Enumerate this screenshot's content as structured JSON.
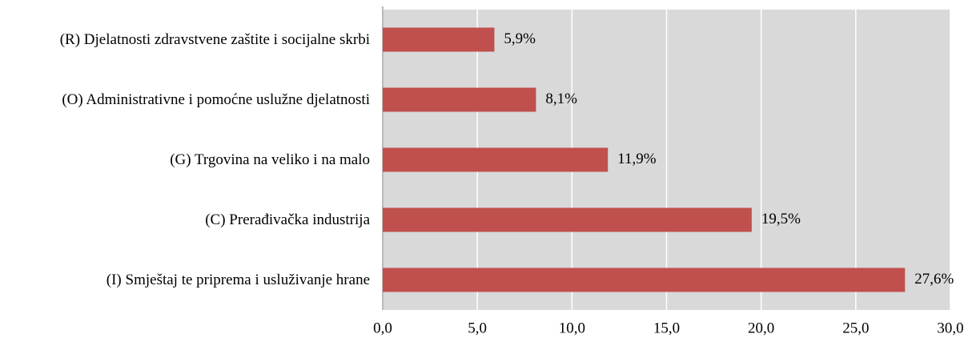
{
  "chart_data": {
    "type": "bar",
    "orientation": "horizontal",
    "categories": [
      "(R) Djelatnosti zdravstvene zaštite i socijalne skrbi",
      "(O) Administrativne i pomoćne uslužne djelatnosti",
      "(G) Trgovina na veliko i na malo",
      "(C) Prerađivačka industrija",
      "(I) Smještaj te priprema i usluživanje hrane"
    ],
    "values": [
      5.9,
      8.1,
      11.9,
      19.5,
      27.6
    ],
    "value_labels": [
      "5,9%",
      "8,1%",
      "11,9%",
      "19,5%",
      "27,6%"
    ],
    "color": "#c0504d",
    "xlim": [
      0,
      30
    ],
    "xticks": [
      {
        "value": 0,
        "label": "0,0"
      },
      {
        "value": 5,
        "label": "5,0"
      },
      {
        "value": 10,
        "label": "10,0"
      },
      {
        "value": 15,
        "label": "15,0"
      },
      {
        "value": 20,
        "label": "20,0"
      },
      {
        "value": 25,
        "label": "25,0"
      },
      {
        "value": 30,
        "label": "30,0"
      }
    ],
    "grid": true
  }
}
